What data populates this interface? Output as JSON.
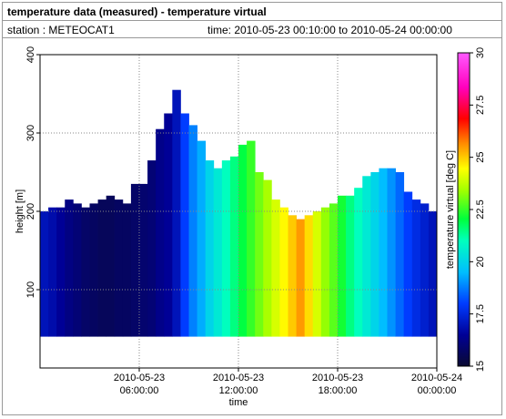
{
  "header": {
    "title": "temperature data (measured) - temperature virtual",
    "station": "station : METEOCAT1",
    "time_range": "time: 2010-05-23 00:10:00 to 2010-05-24 00:00:00"
  },
  "chart_data": {
    "type": "heatmap",
    "xlabel": "time",
    "ylabel": "height [m]",
    "xlim": [
      "2010-05-23 00:00:00",
      "2010-05-24 00:00:00"
    ],
    "xticks": [
      {
        "value": "2010-05-23 06:00:00",
        "label": "2010-05-23\n06:00:00"
      },
      {
        "value": "2010-05-23 12:00:00",
        "label": "2010-05-23\n12:00:00"
      },
      {
        "value": "2010-05-23 18:00:00",
        "label": "2010-05-23\n18:00:00"
      },
      {
        "value": "2010-05-24 00:00:00",
        "label": "2010-05-24\n00:00:00"
      }
    ],
    "ylim": [
      0,
      400
    ],
    "yticks": [
      100,
      200,
      300,
      400
    ],
    "grid": true,
    "min_height": 40,
    "x": [
      "2010-05-23 00:00:00",
      "2010-05-23 00:30:00",
      "2010-05-23 01:00:00",
      "2010-05-23 01:30:00",
      "2010-05-23 02:00:00",
      "2010-05-23 02:30:00",
      "2010-05-23 03:00:00",
      "2010-05-23 03:30:00",
      "2010-05-23 04:00:00",
      "2010-05-23 04:30:00",
      "2010-05-23 05:00:00",
      "2010-05-23 05:30:00",
      "2010-05-23 06:00:00",
      "2010-05-23 06:30:00",
      "2010-05-23 07:00:00",
      "2010-05-23 07:30:00",
      "2010-05-23 08:00:00",
      "2010-05-23 08:30:00",
      "2010-05-23 09:00:00",
      "2010-05-23 09:30:00",
      "2010-05-23 10:00:00",
      "2010-05-23 10:30:00",
      "2010-05-23 11:00:00",
      "2010-05-23 11:30:00",
      "2010-05-23 12:00:00",
      "2010-05-23 12:30:00",
      "2010-05-23 13:00:00",
      "2010-05-23 13:30:00",
      "2010-05-23 14:00:00",
      "2010-05-23 14:30:00",
      "2010-05-23 15:00:00",
      "2010-05-23 15:30:00",
      "2010-05-23 16:00:00",
      "2010-05-23 16:30:00",
      "2010-05-23 17:00:00",
      "2010-05-23 17:30:00",
      "2010-05-23 18:00:00",
      "2010-05-23 18:30:00",
      "2010-05-23 19:00:00",
      "2010-05-23 19:30:00",
      "2010-05-23 20:00:00",
      "2010-05-23 20:30:00",
      "2010-05-23 21:00:00",
      "2010-05-23 21:30:00",
      "2010-05-23 22:00:00",
      "2010-05-23 22:30:00",
      "2010-05-23 23:00:00",
      "2010-05-23 23:30:00"
    ],
    "heights": [
      200,
      205,
      205,
      215,
      210,
      205,
      210,
      215,
      220,
      215,
      210,
      235,
      235,
      265,
      305,
      325,
      355,
      325,
      310,
      290,
      265,
      255,
      265,
      270,
      285,
      290,
      250,
      240,
      215,
      205,
      195,
      190,
      195,
      200,
      205,
      210,
      220,
      220,
      230,
      245,
      250,
      255,
      255,
      250,
      225,
      215,
      210,
      200
    ],
    "values": [
      17.0,
      16.8,
      16.5,
      16.2,
      16.0,
      15.8,
      15.7,
      15.6,
      15.6,
      15.7,
      15.7,
      15.8,
      15.9,
      16.0,
      16.3,
      16.5,
      17.0,
      18.0,
      18.8,
      19.3,
      20.0,
      20.5,
      21.0,
      21.5,
      22.0,
      22.5,
      23.0,
      23.5,
      24.0,
      24.5,
      25.0,
      25.5,
      24.8,
      24.0,
      23.3,
      22.8,
      22.2,
      21.5,
      21.0,
      20.5,
      20.0,
      19.5,
      19.0,
      18.5,
      18.0,
      17.6,
      17.3,
      17.0
    ],
    "colorbar": {
      "label": "temperature virtual [deg C]",
      "clim": [
        15,
        30
      ],
      "ticks": [
        15,
        17.5,
        20,
        22.5,
        25,
        27.5,
        30
      ]
    }
  }
}
